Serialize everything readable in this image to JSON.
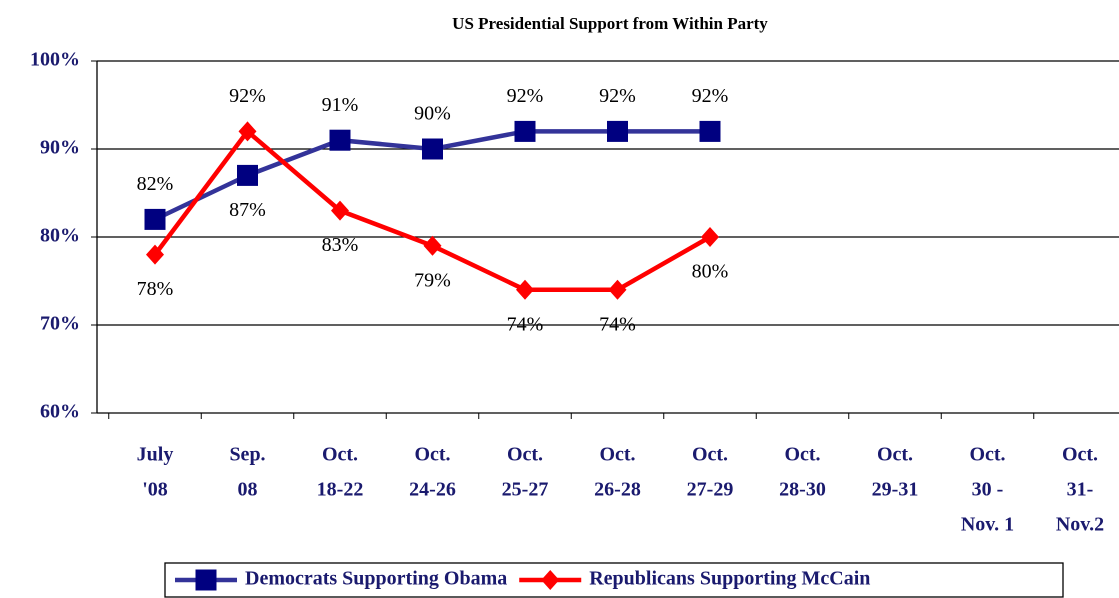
{
  "chart_data": {
    "type": "line",
    "title": "US Presidential Support from Within Party",
    "categories": [
      [
        "July",
        "'08"
      ],
      [
        "Sep.",
        "08"
      ],
      [
        "Oct.",
        "18-22"
      ],
      [
        "Oct.",
        "24-26"
      ],
      [
        "Oct.",
        "25-27"
      ],
      [
        "Oct.",
        "26-28"
      ],
      [
        "Oct.",
        "27-29"
      ],
      [
        "Oct.",
        "28-30"
      ],
      [
        "Oct.",
        "29-31"
      ],
      [
        "Oct.",
        "30 -",
        "Nov. 1"
      ],
      [
        "Oct.",
        "31-",
        "Nov.2"
      ]
    ],
    "series": [
      {
        "name": "Democrats Supporting Obama",
        "color": "#333399",
        "marker": "square",
        "values": [
          82,
          87,
          91,
          90,
          92,
          92,
          92,
          null,
          null,
          null,
          null
        ],
        "value_labels": [
          "82%",
          "87%",
          "91%",
          "90%",
          "92%",
          "92%",
          "92%",
          null,
          null,
          null,
          null
        ]
      },
      {
        "name": "Republicans Supporting McCain",
        "color": "#ff0000",
        "marker": "diamond",
        "values": [
          78,
          92,
          83,
          79,
          74,
          74,
          80,
          null,
          null,
          null,
          null
        ],
        "value_labels": [
          "78%",
          "92%",
          "83%",
          "79%",
          "74%",
          "74%",
          "80%",
          null,
          null,
          null,
          null
        ]
      }
    ],
    "ylim": [
      60,
      100
    ],
    "yticks": [
      {
        "value": 60,
        "label": "60%"
      },
      {
        "value": 70,
        "label": "70%"
      },
      {
        "value": 80,
        "label": "80%"
      },
      {
        "value": 90,
        "label": "90%"
      },
      {
        "value": 100,
        "label": "100%"
      }
    ],
    "grid": true,
    "legend": "bottom"
  }
}
